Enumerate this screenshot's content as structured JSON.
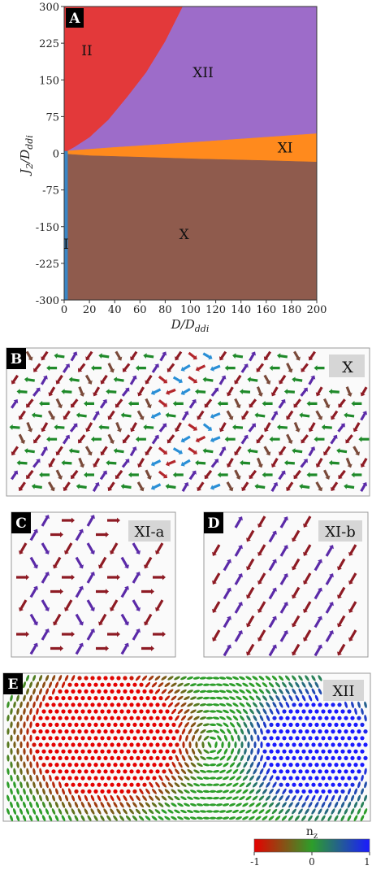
{
  "chart_data": {
    "type": "area",
    "panel_label": "A",
    "xlabel_main": "D/D",
    "xlabel_sub": "ddi",
    "ylabel_main": "J",
    "ylabel_sub1": "2",
    "ylabel_mid": "/D",
    "ylabel_sub2": "ddi",
    "xlim": [
      0,
      200
    ],
    "ylim": [
      -300,
      300
    ],
    "xticks": [
      0,
      20,
      40,
      60,
      80,
      100,
      120,
      140,
      160,
      180,
      200
    ],
    "yticks": [
      300,
      225,
      150,
      75,
      0,
      -75,
      -150,
      -225,
      -300
    ],
    "regions": [
      {
        "name": "I",
        "color": "#3a86c4",
        "polygon": [
          [
            0,
            -300
          ],
          [
            3,
            -300
          ],
          [
            3,
            5
          ],
          [
            0,
            5
          ]
        ],
        "label_at": [
          1.5,
          -185
        ]
      },
      {
        "name": "II",
        "color": "#e3393a",
        "polygon": [
          [
            0,
            300
          ],
          [
            94,
            300
          ],
          [
            80,
            228
          ],
          [
            65,
            165
          ],
          [
            50,
            115
          ],
          [
            35,
            68
          ],
          [
            20,
            32
          ],
          [
            8,
            12
          ],
          [
            3,
            5
          ],
          [
            0,
            5
          ]
        ],
        "label_at": [
          18,
          210
        ]
      },
      {
        "name": "XII",
        "color": "#9d6cc9",
        "polygon": [
          [
            94,
            300
          ],
          [
            200,
            300
          ],
          [
            200,
            40
          ],
          [
            100,
            22
          ],
          [
            40,
            12
          ],
          [
            3,
            5
          ],
          [
            8,
            12
          ],
          [
            20,
            32
          ],
          [
            35,
            68
          ],
          [
            50,
            115
          ],
          [
            65,
            165
          ],
          [
            80,
            228
          ]
        ],
        "label_at": [
          110,
          165
        ]
      },
      {
        "name": "XI",
        "color": "#ff8a1d",
        "polygon": [
          [
            3,
            5
          ],
          [
            40,
            12
          ],
          [
            100,
            22
          ],
          [
            200,
            40
          ],
          [
            200,
            -18
          ],
          [
            160,
            -15
          ],
          [
            110,
            -12
          ],
          [
            60,
            -8
          ],
          [
            20,
            -5
          ],
          [
            3,
            -2
          ]
        ],
        "label_at": [
          175,
          12
        ]
      },
      {
        "name": "X",
        "color": "#8f5b4d",
        "polygon": [
          [
            3,
            -2
          ],
          [
            20,
            -5
          ],
          [
            60,
            -8
          ],
          [
            110,
            -12
          ],
          [
            160,
            -15
          ],
          [
            200,
            -18
          ],
          [
            200,
            -300
          ],
          [
            3,
            -300
          ]
        ],
        "label_at": [
          95,
          -165
        ]
      }
    ]
  },
  "panels": {
    "B": {
      "label": "B",
      "phase": "X"
    },
    "C": {
      "label": "C",
      "phase": "XI-a"
    },
    "D": {
      "label": "D",
      "phase": "XI-b"
    },
    "E": {
      "label": "E",
      "phase": "XII"
    }
  },
  "colorbar": {
    "title_main": "n",
    "title_sub": "z",
    "ticks": [
      "-1",
      "0",
      "1"
    ],
    "colors": [
      "#e60000",
      "#2d9e2a",
      "#1a1aff"
    ]
  },
  "spin_colors": {
    "red": "#b3272c",
    "green": "#1f8a2a",
    "blue": "#2a8fd6",
    "purple": "#5b2aa8",
    "brown": "#7a4a3a",
    "dark_red": "#8e1b24"
  }
}
